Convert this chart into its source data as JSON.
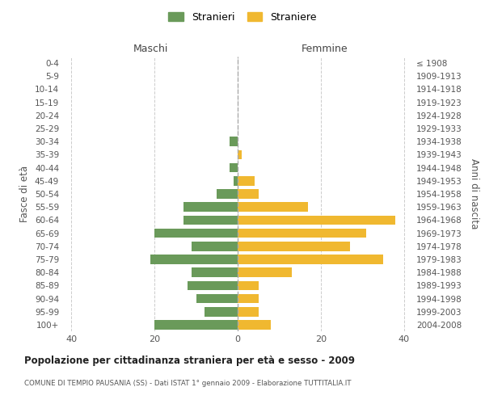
{
  "age_groups": [
    "100+",
    "95-99",
    "90-94",
    "85-89",
    "80-84",
    "75-79",
    "70-74",
    "65-69",
    "60-64",
    "55-59",
    "50-54",
    "45-49",
    "40-44",
    "35-39",
    "30-34",
    "25-29",
    "20-24",
    "15-19",
    "10-14",
    "5-9",
    "0-4"
  ],
  "birth_years": [
    "≤ 1908",
    "1909-1913",
    "1914-1918",
    "1919-1923",
    "1924-1928",
    "1929-1933",
    "1934-1938",
    "1939-1943",
    "1944-1948",
    "1949-1953",
    "1954-1958",
    "1959-1963",
    "1964-1968",
    "1969-1973",
    "1974-1978",
    "1979-1983",
    "1984-1988",
    "1989-1993",
    "1994-1998",
    "1999-2003",
    "2004-2008"
  ],
  "maschi": [
    0,
    0,
    0,
    0,
    0,
    0,
    2,
    0,
    2,
    1,
    5,
    13,
    13,
    20,
    11,
    21,
    11,
    12,
    10,
    8,
    20
  ],
  "femmine": [
    0,
    0,
    0,
    0,
    0,
    0,
    0,
    1,
    0,
    4,
    5,
    17,
    38,
    31,
    27,
    35,
    13,
    5,
    5,
    5,
    8
  ],
  "color_maschi": "#6a9a5a",
  "color_femmine": "#f0b830",
  "title": "Popolazione per cittadinanza straniera per età e sesso - 2009",
  "subtitle": "COMUNE DI TEMPIO PAUSANIA (SS) - Dati ISTAT 1° gennaio 2009 - Elaborazione TUTTITALIA.IT",
  "ylabel_left": "Fasce di età",
  "ylabel_right": "Anni di nascita",
  "xlabel_maschi": "Maschi",
  "xlabel_femmine": "Femmine",
  "legend_maschi": "Stranieri",
  "legend_femmine": "Straniere",
  "xlim": 42,
  "background_color": "#ffffff",
  "grid_color": "#cccccc"
}
